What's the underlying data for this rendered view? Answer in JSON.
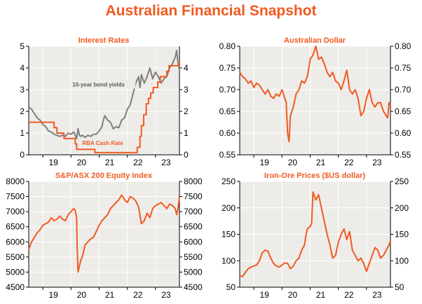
{
  "page": {
    "title": "Australian Financial Snapshot"
  },
  "colors": {
    "accent": "#f15a22",
    "line_orange": "#f15a22",
    "line_grey": "#7f7f7f",
    "plot_bg": "#eeece8",
    "grid": "#ffffff"
  },
  "chart_data": [
    {
      "id": "interest-rates",
      "type": "line",
      "title": "Interest Rates",
      "xlabel": "",
      "ylabel": "",
      "xlim": [
        2018.5,
        2023.85
      ],
      "ylim": [
        0,
        5
      ],
      "ticks_y": [
        0,
        1,
        2,
        3,
        4,
        5
      ],
      "ticks_y_right": [
        0,
        1,
        2,
        3,
        4
      ],
      "ticks_x": [
        {
          "x": 2019,
          "label": "19"
        },
        {
          "x": 2020,
          "label": "20"
        },
        {
          "x": 2021,
          "label": "21"
        },
        {
          "x": 2022,
          "label": "22"
        },
        {
          "x": 2023,
          "label": "23"
        }
      ],
      "grid_x": true,
      "grid_y": true,
      "annotations": [
        {
          "text": "10-year bond yields",
          "series": "10-year bond yields",
          "x": 2020.05,
          "y": 3.15
        },
        {
          "text": "RBA Cash Rate",
          "series": "RBA Cash Rate",
          "x": 2020.4,
          "y": 0.45
        }
      ],
      "series": [
        {
          "name": "10-year bond yields",
          "color": "#7f7f7f",
          "step": false,
          "x": [
            2018.5,
            2018.6,
            2018.7,
            2018.8,
            2018.9,
            2019.0,
            2019.1,
            2019.2,
            2019.3,
            2019.4,
            2019.5,
            2019.6,
            2019.7,
            2019.8,
            2019.9,
            2020.0,
            2020.1,
            2020.2,
            2020.25,
            2020.3,
            2020.35,
            2020.4,
            2020.5,
            2020.6,
            2020.7,
            2020.8,
            2020.9,
            2021.0,
            2021.1,
            2021.15,
            2021.2,
            2021.3,
            2021.4,
            2021.5,
            2021.6,
            2021.7,
            2021.8,
            2021.9,
            2022.0,
            2022.1,
            2022.2,
            2022.3,
            2022.4,
            2022.45,
            2022.5,
            2022.6,
            2022.7,
            2022.8,
            2022.9,
            2023.0,
            2023.1,
            2023.2,
            2023.3,
            2023.4,
            2023.5,
            2023.6,
            2023.7,
            2023.75,
            2023.8,
            2023.85
          ],
          "y": [
            2.2,
            2.1,
            1.9,
            1.7,
            1.6,
            1.4,
            1.3,
            1.1,
            1.05,
            0.95,
            0.9,
            0.85,
            0.9,
            0.85,
            1.0,
            0.95,
            1.05,
            0.75,
            1.2,
            0.9,
            0.85,
            0.9,
            0.8,
            0.9,
            0.85,
            0.95,
            0.95,
            1.1,
            1.3,
            1.6,
            1.8,
            1.6,
            1.5,
            1.2,
            1.3,
            1.25,
            1.6,
            1.7,
            2.1,
            2.3,
            2.8,
            3.3,
            3.6,
            3.1,
            3.7,
            3.3,
            3.6,
            4.0,
            3.5,
            3.8,
            3.6,
            3.3,
            3.5,
            3.6,
            4.0,
            4.2,
            4.5,
            4.8,
            4.2,
            3.9
          ]
        },
        {
          "name": "RBA Cash Rate",
          "color": "#f15a22",
          "step": true,
          "x": [
            2018.5,
            2019.4,
            2019.5,
            2019.75,
            2020.15,
            2020.2,
            2020.85,
            2022.35,
            2022.45,
            2022.5,
            2022.58,
            2022.67,
            2022.75,
            2022.83,
            2022.92,
            2023.08,
            2023.17,
            2023.25,
            2023.4,
            2023.48,
            2023.85
          ],
          "y": [
            1.5,
            1.25,
            1.0,
            0.75,
            0.5,
            0.25,
            0.1,
            0.35,
            0.85,
            1.35,
            1.85,
            2.35,
            2.6,
            2.85,
            3.1,
            3.35,
            3.6,
            3.6,
            3.85,
            4.1,
            4.35
          ]
        }
      ]
    },
    {
      "id": "australian-dollar",
      "type": "line",
      "title": "Australian Dollar",
      "xlabel": "",
      "ylabel": "",
      "xlim": [
        2018.5,
        2023.85
      ],
      "ylim": [
        0.55,
        0.8
      ],
      "ticks_y": [
        0.55,
        0.6,
        0.65,
        0.7,
        0.75,
        0.8
      ],
      "ticks_y_labels": [
        "0.55",
        "0.60",
        "0.65",
        "0.70",
        "0.75",
        "0.80"
      ],
      "ticks_x": [
        {
          "x": 2019,
          "label": "19"
        },
        {
          "x": 2020,
          "label": "20"
        },
        {
          "x": 2021,
          "label": "21"
        },
        {
          "x": 2022,
          "label": "22"
        },
        {
          "x": 2023,
          "label": "23"
        }
      ],
      "grid_x": true,
      "grid_y": true,
      "series": [
        {
          "name": "AUD/USD",
          "color": "#f15a22",
          "step": false,
          "x": [
            2018.5,
            2018.6,
            2018.7,
            2018.8,
            2018.9,
            2019.0,
            2019.1,
            2019.2,
            2019.3,
            2019.4,
            2019.5,
            2019.6,
            2019.7,
            2019.8,
            2019.9,
            2020.0,
            2020.1,
            2020.15,
            2020.2,
            2020.25,
            2020.3,
            2020.4,
            2020.5,
            2020.6,
            2020.7,
            2020.8,
            2020.9,
            2021.0,
            2021.1,
            2021.2,
            2021.3,
            2021.4,
            2021.5,
            2021.6,
            2021.7,
            2021.8,
            2021.9,
            2022.0,
            2022.1,
            2022.2,
            2022.3,
            2022.4,
            2022.5,
            2022.6,
            2022.7,
            2022.8,
            2022.9,
            2023.0,
            2023.1,
            2023.2,
            2023.3,
            2023.4,
            2023.5,
            2023.6,
            2023.7,
            2023.75,
            2023.8,
            2023.85
          ],
          "y": [
            0.74,
            0.73,
            0.725,
            0.715,
            0.72,
            0.705,
            0.715,
            0.71,
            0.7,
            0.69,
            0.7,
            0.685,
            0.68,
            0.69,
            0.685,
            0.7,
            0.68,
            0.67,
            0.6,
            0.58,
            0.64,
            0.66,
            0.69,
            0.7,
            0.72,
            0.715,
            0.73,
            0.77,
            0.78,
            0.8,
            0.77,
            0.775,
            0.76,
            0.74,
            0.73,
            0.74,
            0.72,
            0.715,
            0.7,
            0.72,
            0.745,
            0.7,
            0.69,
            0.7,
            0.68,
            0.64,
            0.65,
            0.68,
            0.7,
            0.67,
            0.66,
            0.67,
            0.67,
            0.65,
            0.64,
            0.635,
            0.67,
            0.665
          ]
        }
      ]
    },
    {
      "id": "equity-index",
      "type": "line",
      "title": "S&P/ASX 200 Equity Index",
      "xlabel": "",
      "ylabel": "",
      "xlim": [
        2018.5,
        2023.85
      ],
      "ylim": [
        4500,
        8000
      ],
      "ticks_y": [
        4500,
        5000,
        5500,
        6000,
        6500,
        7000,
        7500,
        8000
      ],
      "ticks_x": [
        {
          "x": 2019,
          "label": "19"
        },
        {
          "x": 2020,
          "label": "20"
        },
        {
          "x": 2021,
          "label": "21"
        },
        {
          "x": 2022,
          "label": "22"
        },
        {
          "x": 2023,
          "label": "23"
        }
      ],
      "grid_x": true,
      "grid_y": true,
      "series": [
        {
          "name": "S&P/ASX 200",
          "color": "#f15a22",
          "step": false,
          "x": [
            2018.5,
            2018.6,
            2018.7,
            2018.8,
            2018.9,
            2019.0,
            2019.1,
            2019.2,
            2019.3,
            2019.4,
            2019.5,
            2019.6,
            2019.7,
            2019.8,
            2019.9,
            2020.0,
            2020.1,
            2020.15,
            2020.2,
            2020.22,
            2020.25,
            2020.3,
            2020.35,
            2020.4,
            2020.5,
            2020.6,
            2020.7,
            2020.8,
            2020.9,
            2021.0,
            2021.1,
            2021.2,
            2021.3,
            2021.4,
            2021.5,
            2021.6,
            2021.7,
            2021.8,
            2021.9,
            2022.0,
            2022.1,
            2022.2,
            2022.3,
            2022.4,
            2022.5,
            2022.6,
            2022.7,
            2022.8,
            2022.9,
            2023.0,
            2023.1,
            2023.2,
            2023.3,
            2023.4,
            2023.5,
            2023.6,
            2023.7,
            2023.75,
            2023.8,
            2023.85
          ],
          "y": [
            5750,
            6000,
            6150,
            6300,
            6400,
            6550,
            6600,
            6650,
            6800,
            6700,
            6750,
            6850,
            6750,
            6700,
            6900,
            7000,
            7100,
            7050,
            6800,
            5800,
            5000,
            5200,
            5400,
            5500,
            5900,
            6000,
            6100,
            6150,
            6350,
            6550,
            6700,
            6800,
            6900,
            7100,
            7200,
            7300,
            7400,
            7550,
            7400,
            7300,
            7500,
            7450,
            7350,
            7150,
            6600,
            6700,
            6950,
            6800,
            7100,
            7200,
            7250,
            7300,
            7200,
            7100,
            7250,
            7200,
            7100,
            6900,
            7100,
            7500
          ]
        }
      ]
    },
    {
      "id": "iron-ore",
      "type": "line",
      "title": "Iron-Ore Prices ($US dollar)",
      "xlabel": "",
      "ylabel": "",
      "xlim": [
        2018.5,
        2023.85
      ],
      "ylim": [
        50,
        250
      ],
      "ticks_y": [
        50,
        100,
        150,
        200,
        250
      ],
      "ticks_x": [
        {
          "x": 2019,
          "label": "19"
        },
        {
          "x": 2020,
          "label": "20"
        },
        {
          "x": 2021,
          "label": "21"
        },
        {
          "x": 2022,
          "label": "22"
        },
        {
          "x": 2023,
          "label": "23"
        }
      ],
      "grid_x": true,
      "grid_y": true,
      "series": [
        {
          "name": "Iron ore",
          "color": "#f15a22",
          "step": false,
          "x": [
            2018.5,
            2018.6,
            2018.7,
            2018.8,
            2018.9,
            2019.0,
            2019.1,
            2019.2,
            2019.3,
            2019.4,
            2019.5,
            2019.6,
            2019.7,
            2019.8,
            2019.9,
            2020.0,
            2020.1,
            2020.2,
            2020.3,
            2020.4,
            2020.5,
            2020.6,
            2020.7,
            2020.8,
            2020.85,
            2020.9,
            2021.0,
            2021.05,
            2021.1,
            2021.2,
            2021.3,
            2021.4,
            2021.5,
            2021.6,
            2021.7,
            2021.8,
            2021.9,
            2022.0,
            2022.1,
            2022.2,
            2022.3,
            2022.4,
            2022.5,
            2022.6,
            2022.7,
            2022.8,
            2022.9,
            2023.0,
            2023.1,
            2023.2,
            2023.3,
            2023.4,
            2023.5,
            2023.6,
            2023.7,
            2023.8,
            2023.85
          ],
          "y": [
            72,
            70,
            78,
            85,
            88,
            90,
            92,
            100,
            115,
            120,
            118,
            105,
            95,
            90,
            88,
            92,
            96,
            95,
            85,
            90,
            100,
            105,
            120,
            130,
            148,
            160,
            165,
            170,
            230,
            215,
            225,
            200,
            175,
            150,
            130,
            105,
            110,
            135,
            150,
            160,
            140,
            155,
            120,
            110,
            100,
            105,
            95,
            80,
            95,
            110,
            125,
            120,
            105,
            110,
            120,
            130,
            138
          ]
        }
      ]
    }
  ]
}
